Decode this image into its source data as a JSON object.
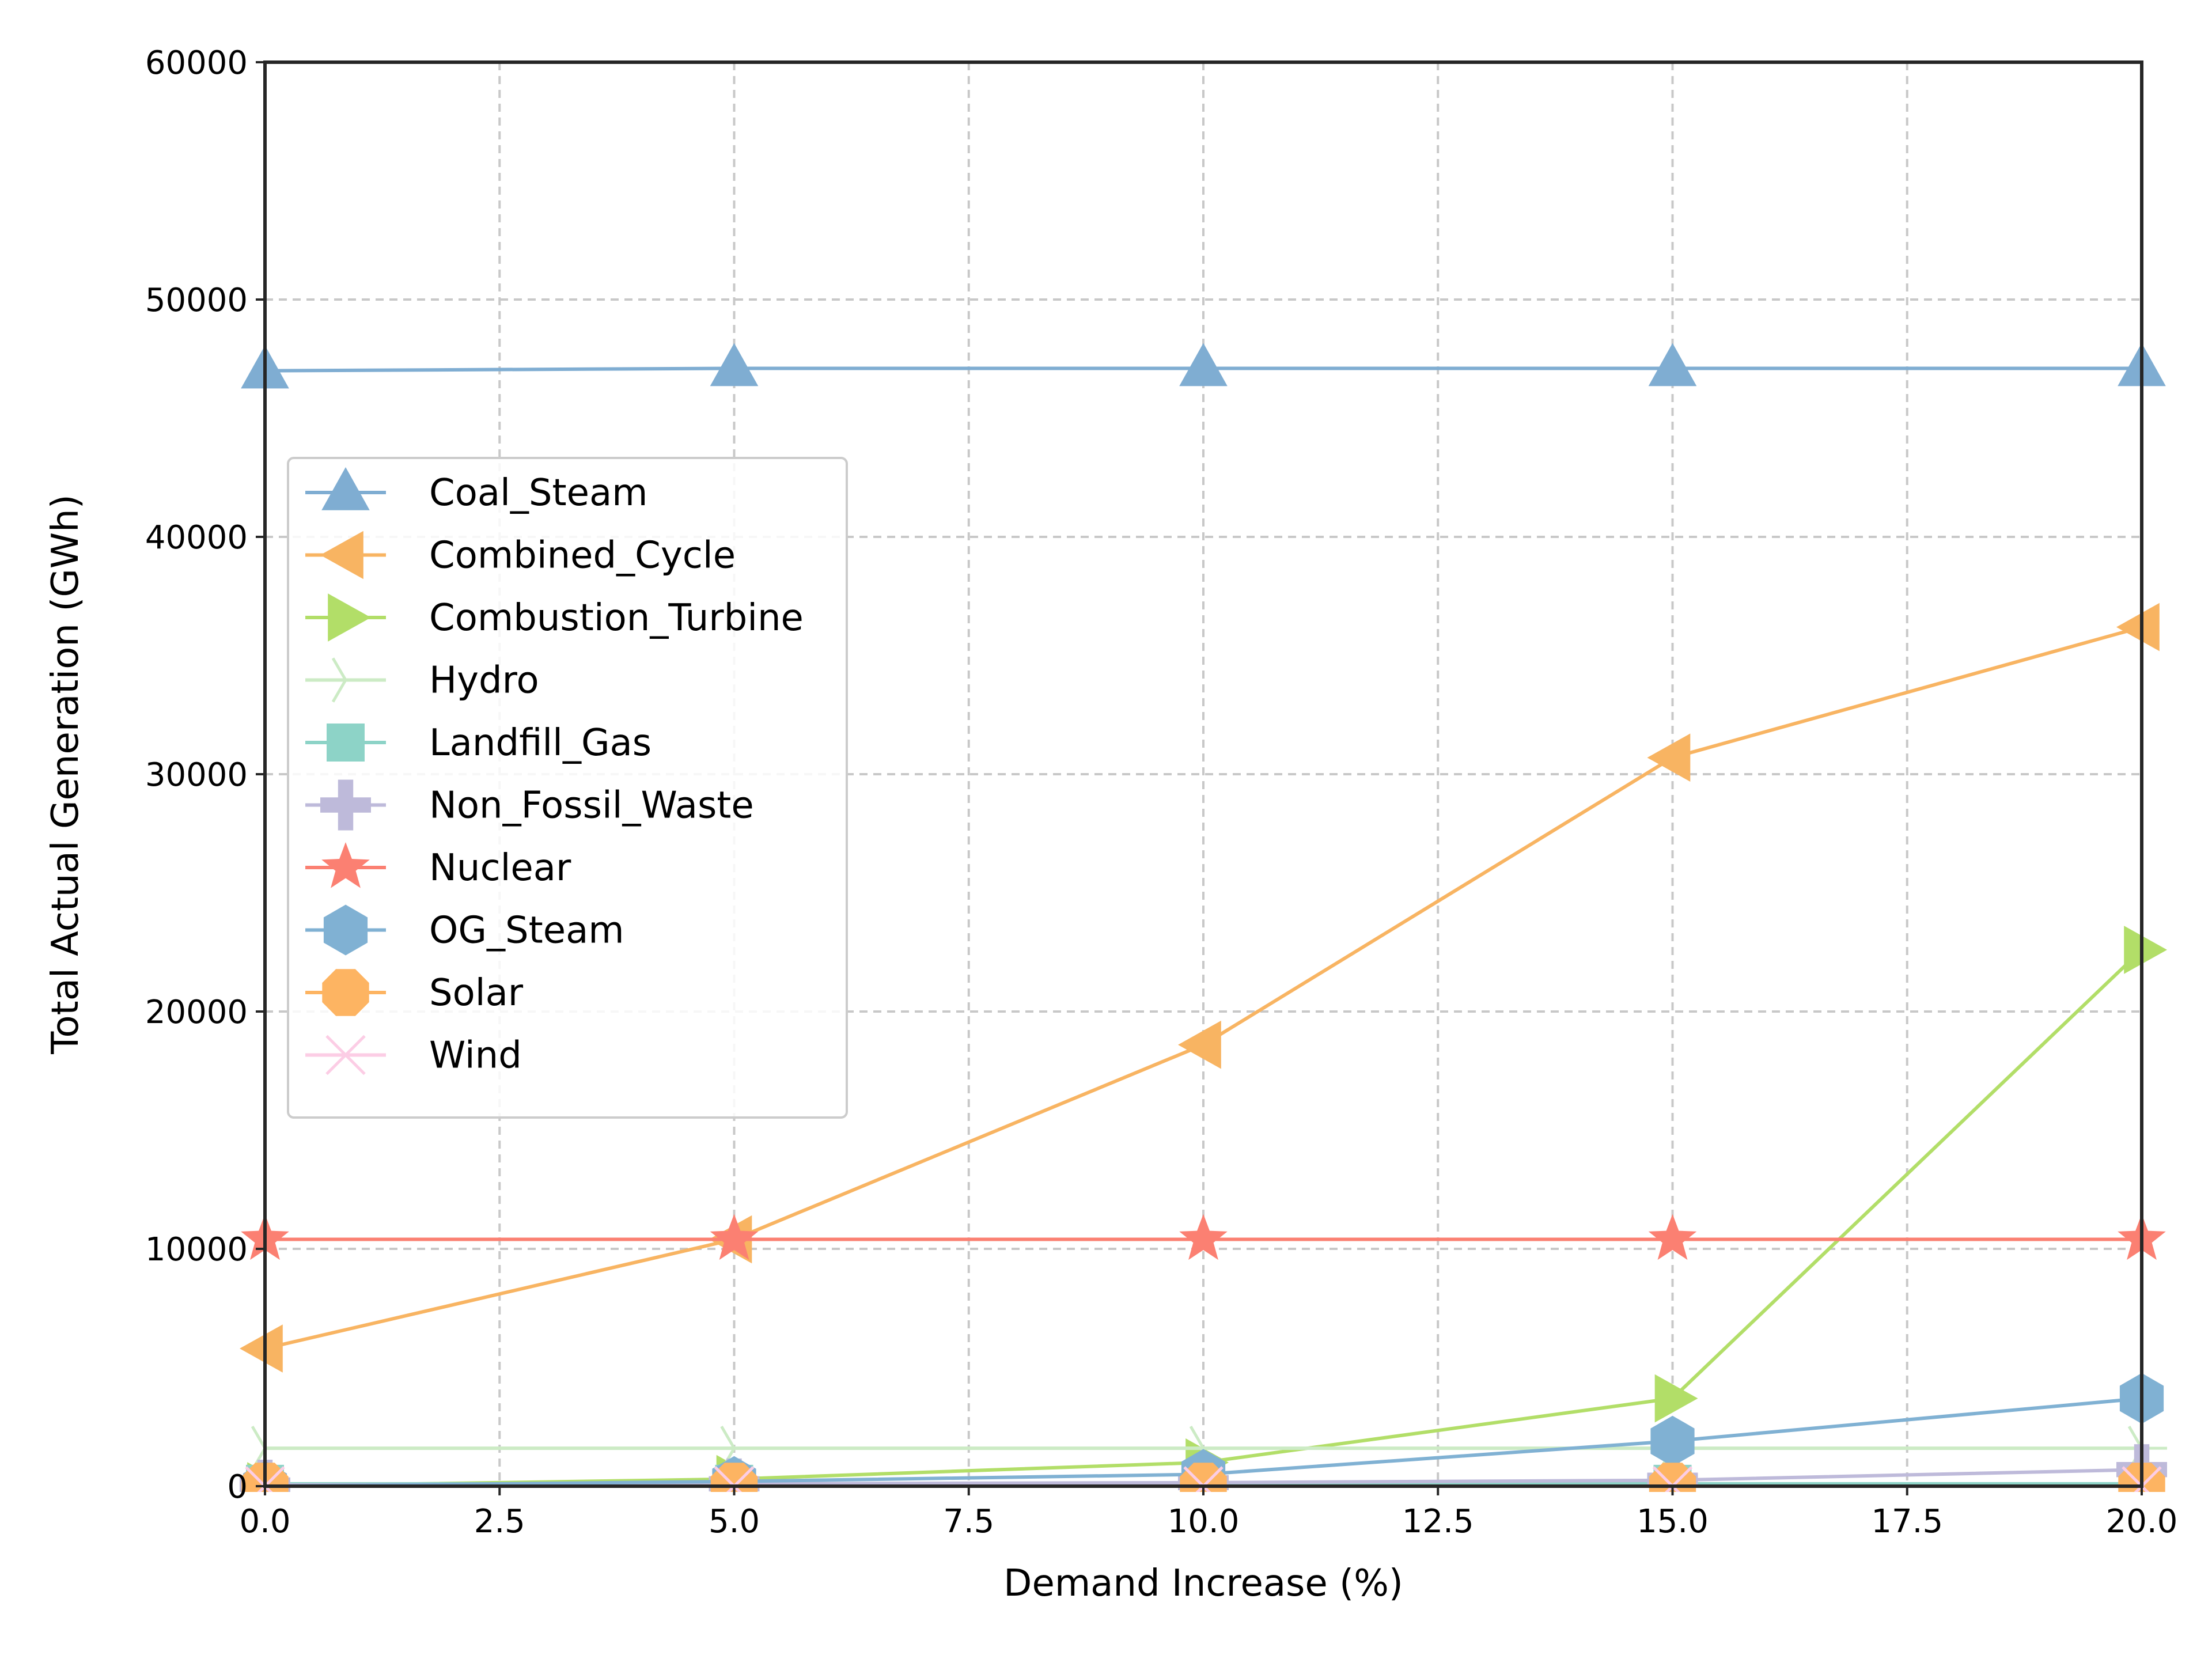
{
  "chart_data": {
    "type": "line",
    "xlabel": "Demand Increase (%)",
    "ylabel": "Total Actual Generation (GWh)",
    "xlim": [
      0,
      20
    ],
    "ylim": [
      0,
      60000
    ],
    "xticks": [
      "0.0",
      "2.5",
      "5.0",
      "7.5",
      "10.0",
      "12.5",
      "15.0",
      "17.5",
      "20.0"
    ],
    "yticks": [
      "0",
      "10000",
      "20000",
      "30000",
      "40000",
      "50000",
      "60000"
    ],
    "grid": true,
    "legend_position": "center-left",
    "x": [
      0,
      5,
      10,
      15,
      20
    ],
    "series": [
      {
        "name": "Coal_Steam",
        "color": "#7fadd2",
        "marker": "triangle-up",
        "values": [
          47000,
          47100,
          47100,
          47100,
          47100
        ]
      },
      {
        "name": "Combined_Cycle",
        "color": "#f8b462",
        "marker": "triangle-left",
        "values": [
          5800,
          10400,
          18600,
          30700,
          36200
        ]
      },
      {
        "name": "Combustion_Turbine",
        "color": "#b2de68",
        "marker": "triangle-right",
        "values": [
          0,
          300,
          1000,
          3700,
          22600
        ]
      },
      {
        "name": "Hydro",
        "color": "#ccebc5",
        "marker": "tri-right",
        "values": [
          1600,
          1600,
          1600,
          1600,
          1600
        ]
      },
      {
        "name": "Landfill_Gas",
        "color": "#8dd3c7",
        "marker": "square",
        "values": [
          100,
          100,
          100,
          100,
          100
        ]
      },
      {
        "name": "Non_Fossil_Waste",
        "color": "#bebada",
        "marker": "plus",
        "values": [
          50,
          100,
          150,
          250,
          700
        ]
      },
      {
        "name": "Nuclear",
        "color": "#fb8072",
        "marker": "star",
        "values": [
          10400,
          10400,
          10400,
          10400,
          10400
        ]
      },
      {
        "name": "OG_Steam",
        "color": "#80b1d3",
        "marker": "hexagon",
        "values": [
          0,
          200,
          500,
          1900,
          3700
        ]
      },
      {
        "name": "Solar",
        "color": "#fdb462",
        "marker": "octagon",
        "values": [
          0,
          0,
          0,
          0,
          0
        ]
      },
      {
        "name": "Wind",
        "color": "#fccde5",
        "marker": "x",
        "values": [
          0,
          0,
          0,
          0,
          0
        ]
      }
    ]
  }
}
